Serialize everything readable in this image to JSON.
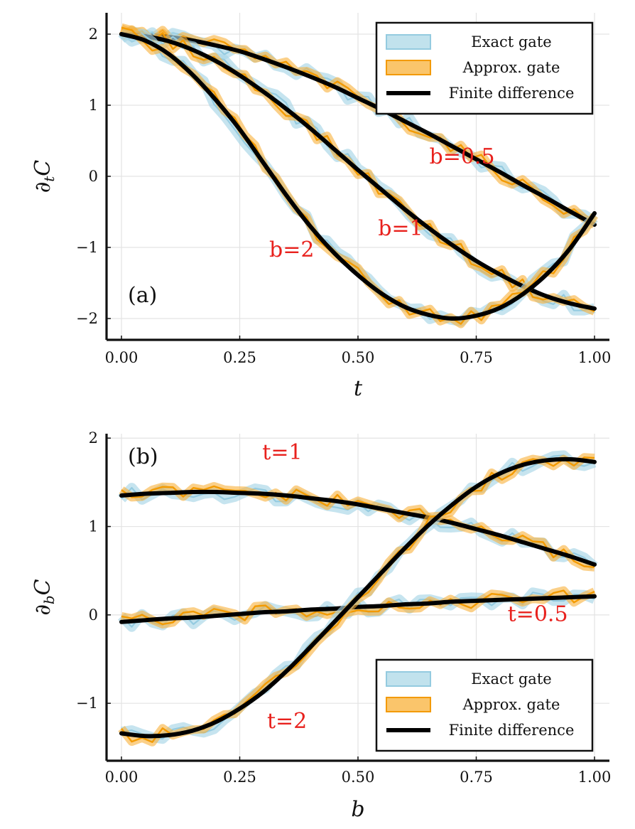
{
  "chart_data": [
    {
      "type": "line",
      "panel_tag": "(a)",
      "xlabel": "t",
      "ylabel": "∂tC",
      "ylabel_main": "∂",
      "ylabel_sub": "t",
      "ylabel_end": "C",
      "xlim": [
        0,
        1
      ],
      "ylim": [
        -2.3,
        2.3
      ],
      "xticks": [
        0,
        0.25,
        0.5,
        0.75,
        1
      ],
      "xtick_labels": [
        "0.00",
        "0.25",
        "0.50",
        "0.75",
        "1.00"
      ],
      "yticks": [
        -2,
        -1,
        0,
        1,
        2
      ],
      "ytick_labels": [
        "−2",
        "−1",
        "0",
        "1",
        "2"
      ],
      "grid": true,
      "legend_position": "top-right",
      "legend": [
        "Exact gate",
        "Approx. gate",
        "Finite difference"
      ],
      "series": [
        {
          "name": "b=0.5",
          "x": [
            0,
            0.05,
            0.1,
            0.15,
            0.2,
            0.25,
            0.3,
            0.35,
            0.4,
            0.45,
            0.5,
            0.55,
            0.6,
            0.65,
            0.7,
            0.75,
            0.8,
            0.85,
            0.9,
            0.95,
            1.0
          ],
          "y": [
            2.0,
            1.99,
            1.96,
            1.91,
            1.84,
            1.76,
            1.65,
            1.53,
            1.4,
            1.26,
            1.1,
            0.94,
            0.77,
            0.6,
            0.42,
            0.24,
            0.06,
            -0.13,
            -0.31,
            -0.5,
            -0.68
          ]
        },
        {
          "name": "b=1",
          "x": [
            0,
            0.05,
            0.1,
            0.15,
            0.2,
            0.25,
            0.3,
            0.35,
            0.4,
            0.45,
            0.5,
            0.55,
            0.6,
            0.65,
            0.7,
            0.75,
            0.8,
            0.85,
            0.9,
            0.95,
            1.0
          ],
          "y": [
            2.0,
            1.97,
            1.9,
            1.78,
            1.62,
            1.42,
            1.19,
            0.94,
            0.67,
            0.38,
            0.09,
            -0.19,
            -0.47,
            -0.73,
            -0.97,
            -1.19,
            -1.38,
            -1.55,
            -1.69,
            -1.79,
            -1.86
          ]
        },
        {
          "name": "b=2",
          "x": [
            0,
            0.05,
            0.1,
            0.15,
            0.2,
            0.25,
            0.3,
            0.35,
            0.4,
            0.45,
            0.5,
            0.55,
            0.6,
            0.65,
            0.7,
            0.75,
            0.8,
            0.85,
            0.9,
            0.95,
            1.0
          ],
          "y": [
            2.0,
            1.91,
            1.72,
            1.43,
            1.07,
            0.66,
            0.19,
            -0.28,
            -0.71,
            -1.08,
            -1.39,
            -1.65,
            -1.84,
            -1.95,
            -2.0,
            -1.96,
            -1.85,
            -1.65,
            -1.37,
            -1.0,
            -0.52
          ]
        }
      ],
      "annotations": [
        {
          "text": "b=0.5",
          "x": 0.72,
          "y": 0.18
        },
        {
          "text": "b=1",
          "x": 0.59,
          "y": -0.83
        },
        {
          "text": "b=2",
          "x": 0.36,
          "y": -1.13
        }
      ]
    },
    {
      "type": "line",
      "panel_tag": "(b)",
      "xlabel": "b",
      "ylabel": "∂bC",
      "ylabel_main": "∂",
      "ylabel_sub": "b",
      "ylabel_end": "C",
      "xlim": [
        0,
        1
      ],
      "ylim": [
        -1.65,
        2.05
      ],
      "xticks": [
        0,
        0.25,
        0.5,
        0.75,
        1
      ],
      "xtick_labels": [
        "0.00",
        "0.25",
        "0.50",
        "0.75",
        "1.00"
      ],
      "yticks": [
        -1,
        0,
        1,
        2
      ],
      "ytick_labels": [
        "−1",
        "0",
        "1",
        "2"
      ],
      "grid": true,
      "legend_position": "bottom-right",
      "legend": [
        "Exact gate",
        "Approx. gate",
        "Finite difference"
      ],
      "series": [
        {
          "name": "t=1",
          "x": [
            0,
            0.05,
            0.1,
            0.15,
            0.2,
            0.25,
            0.3,
            0.35,
            0.4,
            0.45,
            0.5,
            0.55,
            0.6,
            0.65,
            0.7,
            0.75,
            0.8,
            0.85,
            0.9,
            0.95,
            1.0
          ],
          "y": [
            1.35,
            1.37,
            1.38,
            1.39,
            1.39,
            1.38,
            1.37,
            1.35,
            1.32,
            1.29,
            1.25,
            1.2,
            1.15,
            1.1,
            1.04,
            0.97,
            0.9,
            0.82,
            0.74,
            0.66,
            0.57
          ]
        },
        {
          "name": "t=0.5",
          "x": [
            0,
            0.05,
            0.1,
            0.15,
            0.2,
            0.25,
            0.3,
            0.35,
            0.4,
            0.45,
            0.5,
            0.55,
            0.6,
            0.65,
            0.7,
            0.75,
            0.8,
            0.85,
            0.9,
            0.95,
            1.0
          ],
          "y": [
            -0.08,
            -0.06,
            -0.04,
            -0.03,
            -0.01,
            0.01,
            0.03,
            0.04,
            0.06,
            0.07,
            0.09,
            0.1,
            0.12,
            0.13,
            0.15,
            0.16,
            0.17,
            0.18,
            0.19,
            0.2,
            0.21
          ]
        },
        {
          "name": "t=2",
          "x": [
            0,
            0.05,
            0.1,
            0.15,
            0.2,
            0.25,
            0.3,
            0.35,
            0.4,
            0.45,
            0.5,
            0.55,
            0.6,
            0.65,
            0.7,
            0.75,
            0.8,
            0.85,
            0.9,
            0.95,
            1.0
          ],
          "y": [
            -1.34,
            -1.37,
            -1.36,
            -1.31,
            -1.21,
            -1.06,
            -0.87,
            -0.63,
            -0.36,
            -0.08,
            0.2,
            0.48,
            0.76,
            1.02,
            1.25,
            1.45,
            1.6,
            1.7,
            1.75,
            1.76,
            1.73
          ]
        }
      ],
      "annotations": [
        {
          "text": "t=1",
          "x": 0.34,
          "y": 1.76
        },
        {
          "text": "t=0.5",
          "x": 0.88,
          "y": -0.07
        },
        {
          "text": "t=2",
          "x": 0.35,
          "y": -1.28
        }
      ]
    }
  ],
  "colors": {
    "exact_band": "#a7d6e6",
    "exact_line": "#94cbe0",
    "approx_band": "#f8b13a",
    "approx_line": "#f39a00",
    "finite_line": "#000000",
    "annotation": "#e8211d"
  }
}
